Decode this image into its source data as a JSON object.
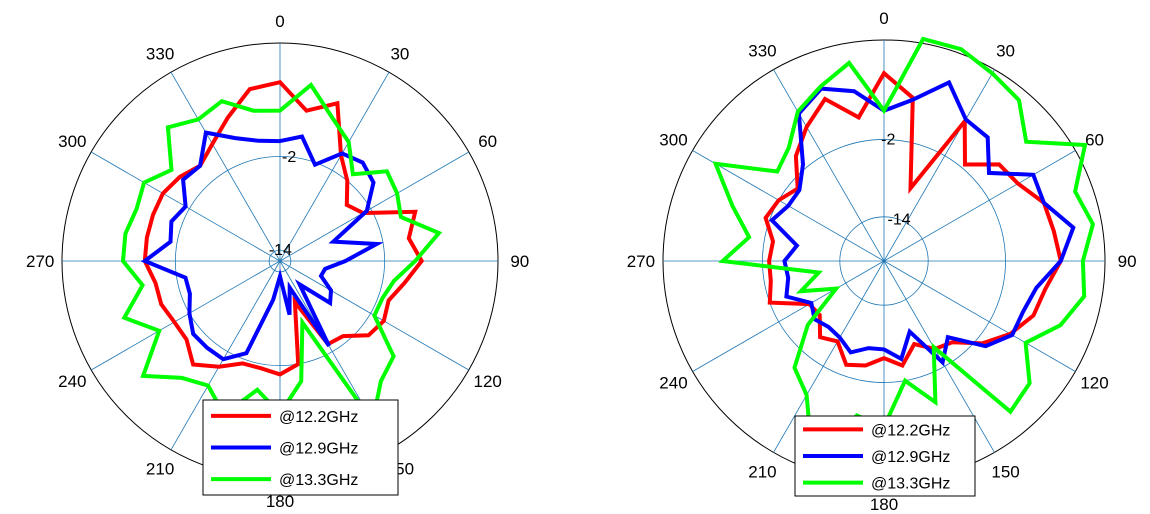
{
  "chart_data": [
    {
      "type": "line",
      "projection": "polar",
      "theta_direction": "clockwise",
      "theta_zero": "top",
      "theta_ticks": [
        "0",
        "30",
        "60",
        "90",
        "120",
        "150",
        "180",
        "210",
        "240",
        "270",
        "300",
        "330"
      ],
      "r_ticks": [
        "-14",
        "-2"
      ],
      "grid": true,
      "legend_position": "bottom",
      "x": [
        0,
        10,
        20,
        30,
        40,
        50,
        60,
        70,
        80,
        90,
        100,
        110,
        120,
        130,
        140,
        150,
        160,
        170,
        180,
        190,
        200,
        210,
        220,
        230,
        240,
        250,
        260,
        270,
        280,
        290,
        300,
        310,
        320,
        330,
        340,
        350
      ],
      "series": [
        {
          "name": "@12.2GHz",
          "color": "#ff0000",
          "values": [
            0.82,
            0.7,
            0.77,
            0.56,
            0.48,
            0.4,
            0.44,
            0.66,
            0.6,
            0.65,
            0.58,
            0.53,
            0.55,
            0.53,
            0.45,
            0.44,
            0.2,
            0.48,
            0.52,
            0.5,
            0.5,
            0.56,
            0.62,
            0.56,
            0.56,
            0.58,
            0.58,
            0.62,
            0.62,
            0.62,
            0.62,
            0.6,
            0.57,
            0.62,
            0.7,
            0.8
          ]
        },
        {
          "name": "@12.9GHz",
          "color": "#0000ff",
          "values": [
            0.55,
            0.58,
            0.47,
            0.57,
            0.59,
            0.56,
            0.46,
            0.26,
            0.45,
            0.3,
            0.21,
            0.2,
            0.27,
            0.3,
            0.14,
            0.45,
            0.13,
            0.25,
            0.07,
            0.18,
            0.45,
            0.52,
            0.52,
            0.52,
            0.48,
            0.44,
            0.44,
            0.62,
            0.51,
            0.53,
            0.5,
            0.58,
            0.57,
            0.68,
            0.6,
            0.56
          ]
        },
        {
          "name": "@13.3GHz",
          "color": "#00ff00",
          "values": [
            0.69,
            0.82,
            0.7,
            0.63,
            0.52,
            0.64,
            0.62,
            0.59,
            0.74,
            0.62,
            0.53,
            0.5,
            0.5,
            0.68,
            0.72,
            0.85,
            0.3,
            0.56,
            0.7,
            0.6,
            0.75,
            0.66,
            0.7,
            0.82,
            0.64,
            0.76,
            0.64,
            0.72,
            0.72,
            0.7,
            0.72,
            0.65,
            0.8,
            0.75,
            0.78,
            0.7
          ]
        }
      ]
    },
    {
      "type": "line",
      "projection": "polar",
      "theta_direction": "clockwise",
      "theta_zero": "top",
      "theta_ticks": [
        "0",
        "30",
        "60",
        "90",
        "120",
        "150",
        "180",
        "210",
        "240",
        "270",
        "300",
        "330"
      ],
      "r_ticks": [
        "-14",
        "-2"
      ],
      "grid": true,
      "legend_position": "bottom",
      "x": [
        0,
        10,
        20,
        30,
        40,
        50,
        60,
        70,
        80,
        90,
        100,
        110,
        120,
        130,
        140,
        150,
        160,
        170,
        180,
        190,
        200,
        210,
        220,
        230,
        240,
        250,
        260,
        270,
        280,
        290,
        300,
        310,
        320,
        330,
        340,
        350
      ],
      "series": [
        {
          "name": "@12.2GHz",
          "color": "#ff0000",
          "values": [
            0.85,
            0.75,
            0.35,
            0.73,
            0.57,
            0.68,
            0.7,
            0.77,
            0.78,
            0.8,
            0.74,
            0.72,
            0.66,
            0.58,
            0.48,
            0.46,
            0.4,
            0.48,
            0.44,
            0.48,
            0.5,
            0.42,
            0.45,
            0.38,
            0.39,
            0.55,
            0.52,
            0.52,
            0.51,
            0.57,
            0.55,
            0.51,
            0.62,
            0.7,
            0.78,
            0.66
          ]
        },
        {
          "name": "@12.9GHz",
          "color": "#0000ff",
          "values": [
            0.68,
            0.74,
            0.86,
            0.74,
            0.73,
            0.62,
            0.78,
            0.77,
            0.87,
            0.8,
            0.7,
            0.67,
            0.67,
            0.6,
            0.45,
            0.53,
            0.34,
            0.45,
            0.4,
            0.4,
            0.44,
            0.4,
            0.39,
            0.41,
            0.38,
            0.47,
            0.44,
            0.45,
            0.4,
            0.54,
            0.5,
            0.5,
            0.57,
            0.77,
            0.83,
            0.78
          ]
        },
        {
          "name": "@13.3GHz",
          "color": "#00ff00",
          "values": [
            0.68,
            1.02,
            1.02,
            0.98,
            0.95,
            0.84,
            1.05,
            0.92,
            0.96,
            0.9,
            0.92,
            0.85,
            0.74,
            0.86,
            0.89,
            0.45,
            0.68,
            0.55,
            0.75,
            0.71,
            0.95,
            0.7,
            0.63,
            0.45,
            0.25,
            0.4,
            0.3,
            0.73,
            0.62,
            0.73,
            0.88,
            0.63,
            0.67,
            0.78,
            0.84,
            0.91
          ]
        }
      ]
    }
  ]
}
